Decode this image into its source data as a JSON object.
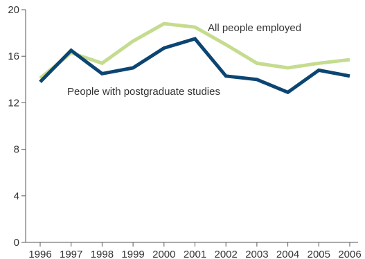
{
  "chart_data": {
    "type": "line",
    "x": [
      "1996",
      "1997",
      "1998",
      "1999",
      "2000",
      "2001",
      "2002",
      "2003",
      "2004",
      "2005",
      "2006"
    ],
    "ylim": [
      0,
      20
    ],
    "yticks": [
      "0",
      "4",
      "8",
      "12",
      "16",
      "20"
    ],
    "grid": false,
    "series": [
      {
        "name": "All people employed",
        "color": "#c5dc8f",
        "values": [
          14.1,
          16.3,
          15.4,
          17.3,
          18.8,
          18.5,
          17.0,
          15.4,
          15.0,
          15.4,
          15.7
        ]
      },
      {
        "name": "People with postgraduate studies",
        "color": "#0c4572",
        "values": [
          13.8,
          16.5,
          14.5,
          15.0,
          16.7,
          17.5,
          14.3,
          14.0,
          12.9,
          14.8,
          14.3
        ]
      }
    ]
  }
}
